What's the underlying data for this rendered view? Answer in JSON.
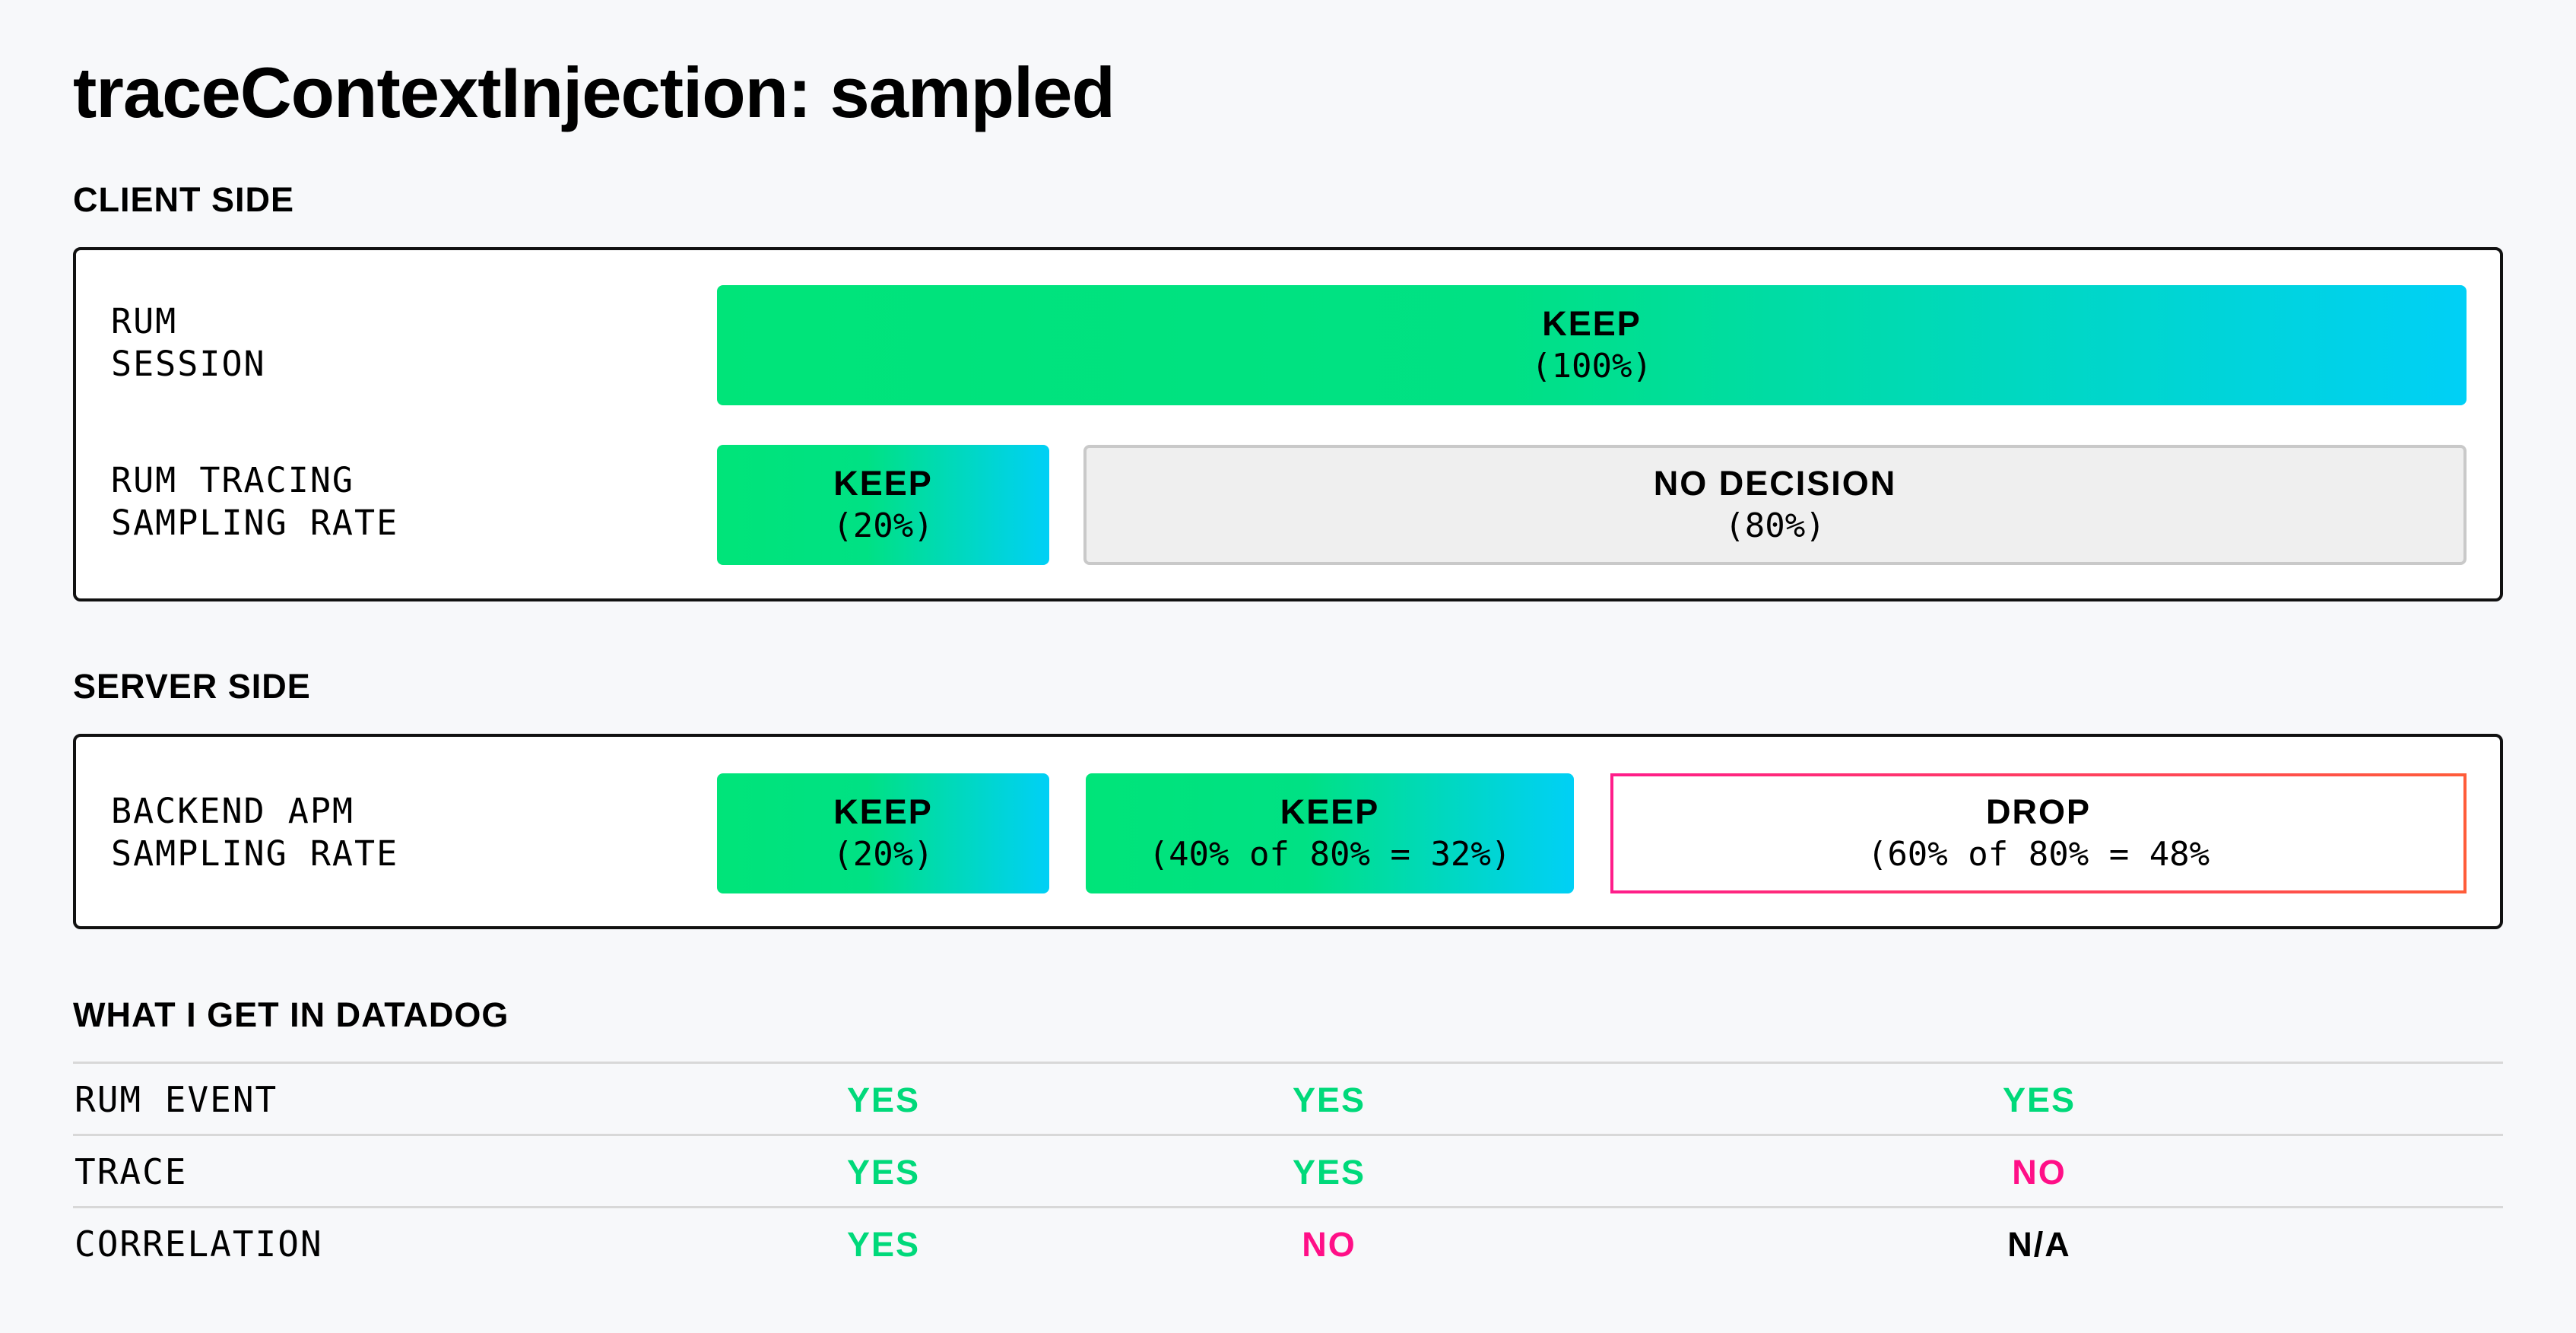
{
  "title": "traceContextInjection: sampled",
  "client_side": {
    "heading": "CLIENT SIDE",
    "rows": [
      {
        "label": "RUM\nSESSION",
        "segments": [
          {
            "label": "KEEP",
            "sub": "(100%)"
          }
        ]
      },
      {
        "label": "RUM TRACING\nSAMPLING RATE",
        "segments": [
          {
            "label": "KEEP",
            "sub": "(20%)"
          },
          {
            "label": "NO DECISION",
            "sub": "(80%)"
          }
        ]
      }
    ]
  },
  "server_side": {
    "heading": "SERVER SIDE",
    "rows": [
      {
        "label": "BACKEND APM\nSAMPLING RATE",
        "segments": [
          {
            "label": "KEEP",
            "sub": "(20%)"
          },
          {
            "label": "KEEP",
            "sub": "(40% of 80% = 32%)"
          },
          {
            "label": "DROP",
            "sub": "(60% of 80% = 48%"
          }
        ]
      }
    ]
  },
  "datadog": {
    "heading": "WHAT I GET IN DATADOG",
    "rows": [
      {
        "label": "RUM EVENT",
        "values": [
          "YES",
          "YES",
          "YES"
        ]
      },
      {
        "label": "TRACE",
        "values": [
          "YES",
          "YES",
          "NO"
        ]
      },
      {
        "label": "CORRELATION",
        "values": [
          "YES",
          "NO",
          "N/A"
        ]
      }
    ]
  },
  "colors": {
    "keep_gradient_start": "#00e479",
    "keep_gradient_end": "#00d0f6",
    "yes": "#00d97a",
    "no": "#ff0f87",
    "drop_border": "#ff1d8a",
    "no_decision_bg": "#efefef"
  }
}
